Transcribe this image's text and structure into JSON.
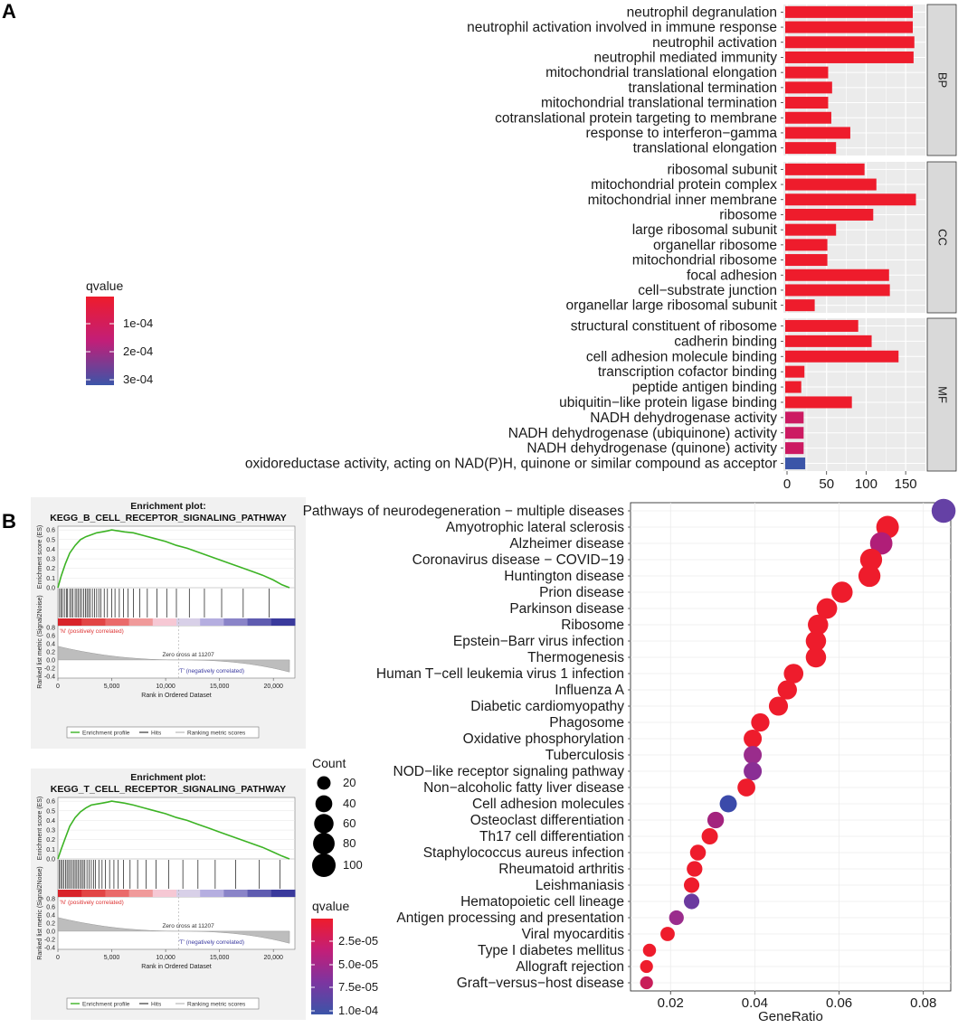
{
  "panels": {
    "a_label": "A",
    "b_label": "B"
  },
  "chart_data": [
    {
      "type": "bar",
      "orientation": "horizontal",
      "panel": "A",
      "xlim": [
        0,
        175
      ],
      "xticks": [
        0,
        50,
        100,
        150
      ],
      "colors": {
        "low_q": "#ee1c2c",
        "mid_q": "#cc1a62",
        "high_q": "#3b55a8"
      },
      "legend": {
        "title": "qvalue",
        "labels": [
          "1e-04",
          "2e-04",
          "3e-04"
        ],
        "stops": [
          "#ee1c2c",
          "#c21e78",
          "#3b55a8"
        ]
      },
      "facets": [
        {
          "name": "BP",
          "terms": [
            {
              "label": "neutrophil degranulation",
              "value": 159,
              "color": "#ee1c2c"
            },
            {
              "label": "neutrophil activation involved in immune response",
              "value": 159,
              "color": "#ee1c2c"
            },
            {
              "label": "neutrophil activation",
              "value": 161,
              "color": "#ee1c2c"
            },
            {
              "label": "neutrophil mediated immunity",
              "value": 160,
              "color": "#ee1c2c"
            },
            {
              "label": "mitochondrial translational elongation",
              "value": 52,
              "color": "#ee1c2c"
            },
            {
              "label": "translational termination",
              "value": 57,
              "color": "#ee1c2c"
            },
            {
              "label": "mitochondrial translational termination",
              "value": 52,
              "color": "#ee1c2c"
            },
            {
              "label": "cotranslational protein targeting to membrane",
              "value": 56,
              "color": "#ee1c2c"
            },
            {
              "label": "response to interferon−gamma",
              "value": 80,
              "color": "#ee1c2c"
            },
            {
              "label": "translational elongation",
              "value": 62,
              "color": "#ee1c2c"
            }
          ]
        },
        {
          "name": "CC",
          "terms": [
            {
              "label": "ribosomal subunit",
              "value": 98,
              "color": "#ee1c2c"
            },
            {
              "label": "mitochondrial protein complex",
              "value": 113,
              "color": "#ee1c2c"
            },
            {
              "label": "mitochondrial inner membrane",
              "value": 163,
              "color": "#ee1c2c"
            },
            {
              "label": "ribosome",
              "value": 109,
              "color": "#ee1c2c"
            },
            {
              "label": "large ribosomal subunit",
              "value": 62,
              "color": "#ee1c2c"
            },
            {
              "label": "organellar ribosome",
              "value": 51,
              "color": "#ee1c2c"
            },
            {
              "label": "mitochondrial ribosome",
              "value": 51,
              "color": "#ee1c2c"
            },
            {
              "label": "focal adhesion",
              "value": 129,
              "color": "#ee1c2c"
            },
            {
              "label": "cell−substrate junction",
              "value": 130,
              "color": "#ee1c2c"
            },
            {
              "label": "organellar large ribosomal subunit",
              "value": 35,
              "color": "#ee1c2c"
            }
          ]
        },
        {
          "name": "MF",
          "terms": [
            {
              "label": "structural constituent of ribosome",
              "value": 90,
              "color": "#ee1c2c"
            },
            {
              "label": "cadherin binding",
              "value": 107,
              "color": "#ee1c2c"
            },
            {
              "label": "cell adhesion molecule binding",
              "value": 141,
              "color": "#ee1c2c"
            },
            {
              "label": "transcription cofactor binding",
              "value": 22,
              "color": "#ee1c2c"
            },
            {
              "label": "peptide antigen binding",
              "value": 18,
              "color": "#ee1c2c"
            },
            {
              "label": "ubiquitin−like protein ligase binding",
              "value": 82,
              "color": "#ee1c2c"
            },
            {
              "label": "NADH dehydrogenase activity",
              "value": 21,
              "color": "#cc1a62"
            },
            {
              "label": "NADH dehydrogenase (ubiquinone) activity",
              "value": 21,
              "color": "#cc1a62"
            },
            {
              "label": "NADH dehydrogenase (quinone) activity",
              "value": 21,
              "color": "#cc1a62"
            },
            {
              "label": "oxidoreductase activity, acting on NAD(P)H, quinone or similar compound as acceptor",
              "value": 23,
              "color": "#3b55a8"
            }
          ]
        }
      ]
    },
    {
      "type": "line",
      "panel": "B-gsea-1",
      "title_line1": "Enrichment plot:",
      "title_line2": "KEGG_B_CELL_RECEPTOR_SIGNALING_PATHWAY",
      "ylabel_top": "Enrichment score (ES)",
      "ylabel_bottom": "Ranked list metric (Signal2Noise)",
      "xlabel": "Rank in Ordered Dataset",
      "pos_label": "'N' (positively correlated)",
      "neg_label": "'T' (negatively correlated)",
      "zero_cross": "Zero cross at 11207",
      "legend": [
        "Enrichment profile",
        "Hits",
        "Ranking metric scores"
      ],
      "xticks": [
        "0",
        "5,000",
        "10,000",
        "15,000",
        "20,000"
      ],
      "yticks_es": [
        "0.0",
        "0.1",
        "0.2",
        "0.3",
        "0.4",
        "0.5",
        "0.6"
      ],
      "yticks_rank": [
        "0.8",
        "0.6",
        "0.4",
        "0.2",
        "0.0",
        "-0.2",
        "-0.4"
      ],
      "es_x": [
        0,
        300,
        700,
        1100,
        1600,
        2100,
        2600,
        3100,
        3600,
        4100,
        4600,
        5000,
        5600,
        6200,
        7000,
        8000,
        9000,
        10000,
        11000,
        12000,
        13000,
        14000,
        15000,
        16000,
        17000,
        18000,
        19000,
        20000,
        20800,
        21500
      ],
      "es_y": [
        0.0,
        0.12,
        0.25,
        0.36,
        0.44,
        0.5,
        0.53,
        0.55,
        0.57,
        0.58,
        0.59,
        0.6,
        0.59,
        0.58,
        0.57,
        0.54,
        0.51,
        0.48,
        0.44,
        0.41,
        0.37,
        0.33,
        0.29,
        0.25,
        0.21,
        0.17,
        0.13,
        0.08,
        0.03,
        0.0
      ],
      "hits": [
        150,
        300,
        420,
        600,
        780,
        900,
        1100,
        1250,
        1400,
        1600,
        1750,
        1900,
        2050,
        2200,
        2400,
        2550,
        2700,
        2850,
        3000,
        3200,
        3400,
        3600,
        3800,
        4000,
        4300,
        4600,
        5000,
        5300,
        5700,
        6100,
        6500,
        7000,
        7600,
        8300,
        9200,
        10100,
        11000,
        12200,
        13600,
        15200,
        17200,
        19600
      ]
    },
    {
      "type": "line",
      "panel": "B-gsea-2",
      "title_line1": "Enrichment plot:",
      "title_line2": "KEGG_T_CELL_RECEPTOR_SIGNALING_PATHWAY",
      "ylabel_top": "Enrichment score (ES)",
      "ylabel_bottom": "Ranked list metric (Signal2Noise)",
      "xlabel": "Rank in Ordered Dataset",
      "pos_label": "'N' (positively correlated)",
      "neg_label": "'T' (negatively correlated)",
      "zero_cross": "Zero cross at 11207",
      "legend": [
        "Enrichment profile",
        "Hits",
        "Ranking metric scores"
      ],
      "xticks": [
        "0",
        "5,000",
        "10,000",
        "15,000",
        "20,000"
      ],
      "yticks_es": [
        "0.0",
        "0.1",
        "0.2",
        "0.3",
        "0.4",
        "0.5",
        "0.6"
      ],
      "yticks_rank": [
        "0.8",
        "0.6",
        "0.4",
        "0.2",
        "0.0",
        "-0.2",
        "-0.4"
      ],
      "es_x": [
        0,
        300,
        700,
        1100,
        1600,
        2100,
        2600,
        3100,
        3600,
        4100,
        4600,
        5000,
        5600,
        6200,
        7000,
        8000,
        9000,
        10000,
        11000,
        12000,
        13000,
        14000,
        15000,
        16000,
        17000,
        18000,
        19000,
        20000,
        20800,
        21500
      ],
      "es_y": [
        0.0,
        0.1,
        0.22,
        0.34,
        0.43,
        0.49,
        0.53,
        0.56,
        0.57,
        0.58,
        0.59,
        0.6,
        0.59,
        0.58,
        0.56,
        0.53,
        0.5,
        0.47,
        0.43,
        0.4,
        0.36,
        0.32,
        0.28,
        0.24,
        0.2,
        0.16,
        0.12,
        0.07,
        0.03,
        0.0
      ],
      "hits": [
        120,
        260,
        400,
        550,
        700,
        850,
        1000,
        1150,
        1300,
        1450,
        1600,
        1750,
        1900,
        2050,
        2200,
        2350,
        2500,
        2700,
        2900,
        3100,
        3300,
        3500,
        3800,
        4100,
        4400,
        4800,
        5200,
        5600,
        6100,
        6700,
        7400,
        8200,
        9100,
        10300,
        11600,
        13000,
        14600,
        16500,
        18700,
        20600
      ]
    },
    {
      "type": "scatter",
      "panel": "B-dot",
      "xlabel": "GeneRatio",
      "xlim": [
        0.0105,
        0.0865
      ],
      "xticks": [
        0.02,
        0.04,
        0.06,
        0.08
      ],
      "xtick_labels": [
        "0.02",
        "0.04",
        "0.06",
        "0.08"
      ],
      "size_legend": {
        "title": "Count",
        "values": [
          20,
          40,
          60,
          80,
          100
        ]
      },
      "color_legend": {
        "title": "qvalue",
        "labels": [
          "2.5e-05",
          "5.0e-05",
          "7.5e-05",
          "1.0e-04"
        ],
        "stops": [
          "#ee1c2c",
          "#c21e78",
          "#7c35a0",
          "#3b55a8"
        ]
      },
      "points": [
        {
          "label": "Pathways of neurodegeneration − multiple diseases",
          "x": 0.0848,
          "count": 105,
          "color": "#6541a5"
        },
        {
          "label": "Amyotrophic lateral sclerosis",
          "x": 0.0715,
          "count": 90,
          "color": "#ee1c2c"
        },
        {
          "label": "Alzheimer disease",
          "x": 0.07,
          "count": 88,
          "color": "#b01e78"
        },
        {
          "label": "Coronavirus disease − COVID−19",
          "x": 0.0676,
          "count": 84,
          "color": "#ee1c2c"
        },
        {
          "label": "Huntington disease",
          "x": 0.0672,
          "count": 84,
          "color": "#ee1c2c"
        },
        {
          "label": "Prion disease",
          "x": 0.0607,
          "count": 76,
          "color": "#ee1c2c"
        },
        {
          "label": "Parkinson disease",
          "x": 0.0571,
          "count": 70,
          "color": "#ee1c2c"
        },
        {
          "label": "Ribosome",
          "x": 0.055,
          "count": 68,
          "color": "#ee1c2c"
        },
        {
          "label": "Epstein−Barr virus infection",
          "x": 0.0545,
          "count": 68,
          "color": "#ee1c2c"
        },
        {
          "label": "Thermogenesis",
          "x": 0.0545,
          "count": 68,
          "color": "#ee1c2c"
        },
        {
          "label": "Human T−cell leukemia virus 1 infection",
          "x": 0.0492,
          "count": 61,
          "color": "#ee1c2c"
        },
        {
          "label": "Influenza A",
          "x": 0.0477,
          "count": 59,
          "color": "#ee1c2c"
        },
        {
          "label": "Diabetic cardiomyopathy",
          "x": 0.0456,
          "count": 57,
          "color": "#ee1c2c"
        },
        {
          "label": "Phagosome",
          "x": 0.0413,
          "count": 51,
          "color": "#ee1c2c"
        },
        {
          "label": "Oxidative phosphorylation",
          "x": 0.0395,
          "count": 49,
          "color": "#ee1c2c"
        },
        {
          "label": "Tuberculosis",
          "x": 0.0395,
          "count": 49,
          "color": "#9a2c8c"
        },
        {
          "label": "NOD−like receptor signaling pathway",
          "x": 0.0395,
          "count": 49,
          "color": "#8a2e95"
        },
        {
          "label": "Non−alcoholic fatty liver disease",
          "x": 0.038,
          "count": 47,
          "color": "#ee1c2c"
        },
        {
          "label": "Cell adhesion molecules",
          "x": 0.0337,
          "count": 42,
          "color": "#3b4aaa"
        },
        {
          "label": "Osteoclast differentiation",
          "x": 0.0307,
          "count": 38,
          "color": "#a3237e"
        },
        {
          "label": "Th17 cell differentiation",
          "x": 0.0293,
          "count": 36,
          "color": "#ee1c2c"
        },
        {
          "label": "Staphylococcus aureus infection",
          "x": 0.0265,
          "count": 33,
          "color": "#ee1c2c"
        },
        {
          "label": "Rheumatoid arthritis",
          "x": 0.0257,
          "count": 32,
          "color": "#ee1c2c"
        },
        {
          "label": "Leishmaniasis",
          "x": 0.025,
          "count": 31,
          "color": "#ee1c2c"
        },
        {
          "label": "Hematopoietic cell lineage",
          "x": 0.025,
          "count": 31,
          "color": "#6b3a9f"
        },
        {
          "label": "Antigen processing and presentation",
          "x": 0.0214,
          "count": 26,
          "color": "#9a2c8c"
        },
        {
          "label": "Viral myocarditis",
          "x": 0.0193,
          "count": 24,
          "color": "#ee1c2c"
        },
        {
          "label": "Type I diabetes mellitus",
          "x": 0.015,
          "count": 18,
          "color": "#ee1c2c"
        },
        {
          "label": "Allograft rejection",
          "x": 0.0143,
          "count": 17,
          "color": "#ee1c2c"
        },
        {
          "label": "Graft−versus−host disease",
          "x": 0.0143,
          "count": 17,
          "color": "#c81e5a"
        }
      ]
    }
  ]
}
